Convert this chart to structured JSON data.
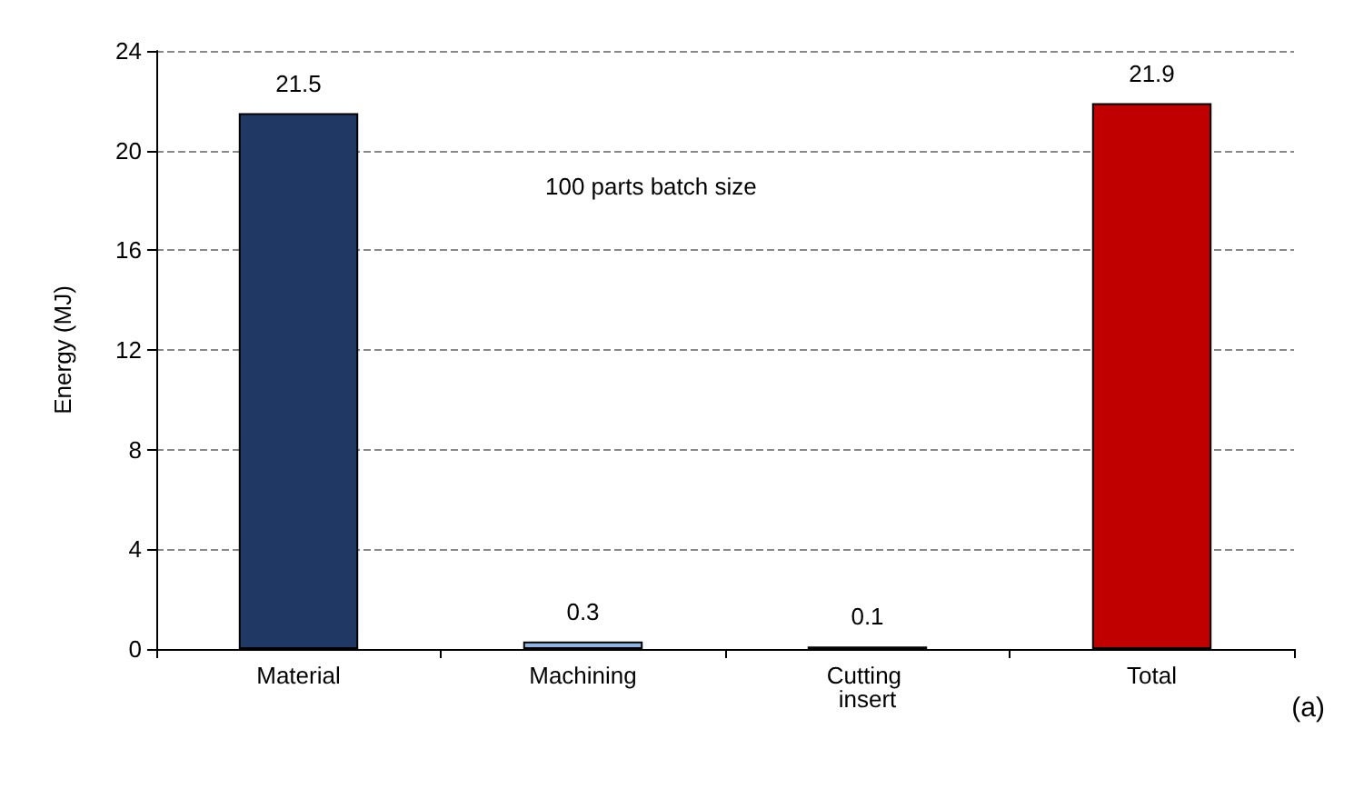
{
  "chart_data": {
    "type": "bar",
    "ylabel": "Energy (MJ)",
    "categories": [
      "Material",
      "Machining",
      "Cutting insert",
      "Total"
    ],
    "values": [
      21.5,
      0.3,
      0.1,
      21.9
    ],
    "colors": [
      "#1f3864",
      "#8db3e2",
      "#7f7f7f",
      "#c00000"
    ],
    "ylim": [
      0,
      24
    ],
    "yticks": [
      0,
      4,
      8,
      12,
      16,
      20,
      24
    ],
    "grid": "y",
    "data_labels": true,
    "annotations": [
      "100 parts batch size",
      "(a)"
    ]
  }
}
